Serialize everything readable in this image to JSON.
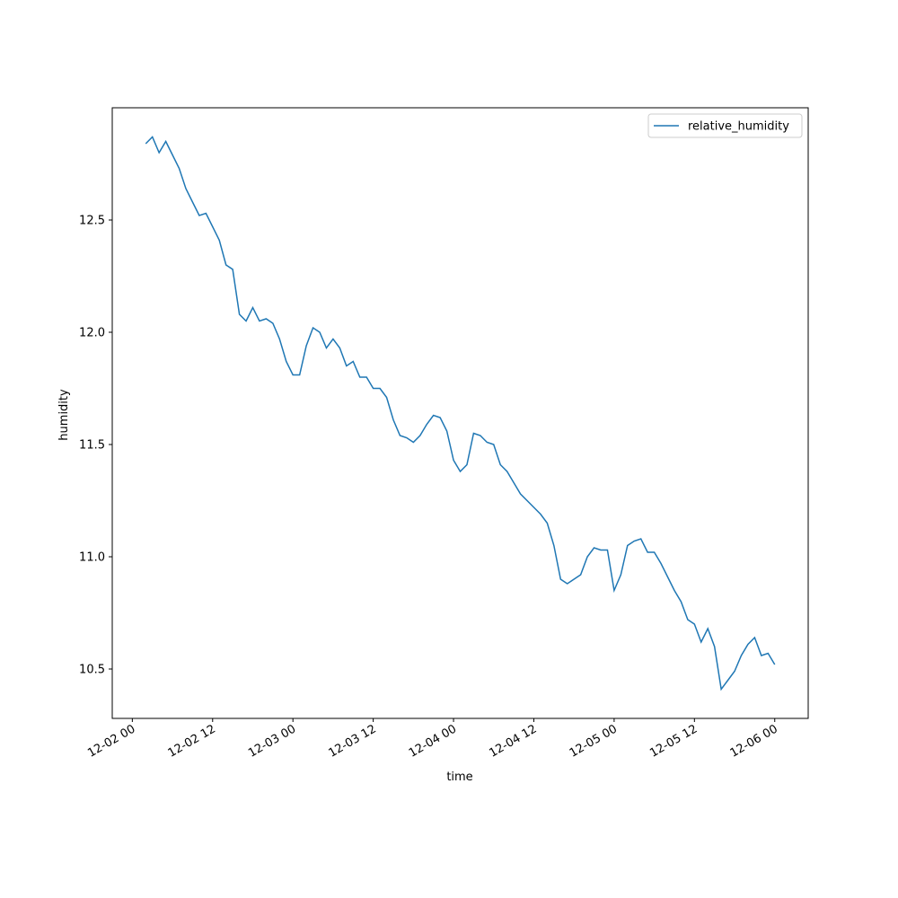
{
  "chart_data": {
    "type": "line",
    "x_label": "time",
    "y_label": "humidity",
    "x": [
      "12-02 02",
      "12-02 03",
      "12-02 04",
      "12-02 05",
      "12-02 06",
      "12-02 07",
      "12-02 08",
      "12-02 09",
      "12-02 10",
      "12-02 11",
      "12-02 12",
      "12-02 13",
      "12-02 14",
      "12-02 15",
      "12-02 16",
      "12-02 17",
      "12-02 18",
      "12-02 19",
      "12-02 20",
      "12-02 21",
      "12-02 22",
      "12-02 23",
      "12-03 00",
      "12-03 01",
      "12-03 02",
      "12-03 03",
      "12-03 04",
      "12-03 05",
      "12-03 06",
      "12-03 07",
      "12-03 08",
      "12-03 09",
      "12-03 10",
      "12-03 11",
      "12-03 12",
      "12-03 13",
      "12-03 14",
      "12-03 15",
      "12-03 16",
      "12-03 17",
      "12-03 18",
      "12-03 19",
      "12-03 20",
      "12-03 21",
      "12-03 22",
      "12-03 23",
      "12-04 00",
      "12-04 01",
      "12-04 02",
      "12-04 03",
      "12-04 04",
      "12-04 05",
      "12-04 06",
      "12-04 07",
      "12-04 08",
      "12-04 09",
      "12-04 10",
      "12-04 11",
      "12-04 12",
      "12-04 13",
      "12-04 14",
      "12-04 15",
      "12-04 16",
      "12-04 17",
      "12-04 18",
      "12-04 19",
      "12-04 20",
      "12-04 21",
      "12-04 22",
      "12-04 23",
      "12-05 00",
      "12-05 01",
      "12-05 02",
      "12-05 03",
      "12-05 04",
      "12-05 05",
      "12-05 06",
      "12-05 07",
      "12-05 08",
      "12-05 09",
      "12-05 10",
      "12-05 11",
      "12-05 12",
      "12-05 13",
      "12-05 14",
      "12-05 15",
      "12-05 16",
      "12-05 17",
      "12-05 18",
      "12-05 19",
      "12-05 20",
      "12-05 21",
      "12-05 22",
      "12-05 23",
      "12-06 00"
    ],
    "series": [
      {
        "name": "relative_humidity",
        "color": "#1f77b4",
        "values": [
          12.84,
          12.87,
          12.8,
          12.85,
          12.79,
          12.73,
          12.64,
          12.58,
          12.52,
          12.53,
          12.47,
          12.41,
          12.3,
          12.28,
          12.08,
          12.05,
          12.11,
          12.05,
          12.06,
          12.04,
          11.97,
          11.87,
          11.81,
          11.81,
          11.94,
          12.02,
          12.0,
          11.93,
          11.97,
          11.93,
          11.85,
          11.87,
          11.8,
          11.8,
          11.75,
          11.75,
          11.71,
          11.61,
          11.54,
          11.53,
          11.51,
          11.54,
          11.59,
          11.63,
          11.62,
          11.56,
          11.43,
          11.38,
          11.41,
          11.55,
          11.54,
          11.51,
          11.5,
          11.41,
          11.38,
          11.33,
          11.28,
          11.25,
          11.22,
          11.19,
          11.15,
          11.05,
          10.9,
          10.88,
          10.9,
          10.92,
          11.0,
          11.04,
          11.03,
          11.03,
          10.85,
          10.92,
          11.05,
          11.07,
          11.08,
          11.02,
          11.02,
          10.97,
          10.91,
          10.85,
          10.8,
          10.72,
          10.7,
          10.62,
          10.68,
          10.6,
          10.41,
          10.45,
          10.49,
          10.56,
          10.61,
          10.64,
          10.56,
          10.57,
          10.52
        ]
      }
    ],
    "xlim": [
      "12-01 21",
      "12-06 05"
    ],
    "xticks": [
      "12-02 00",
      "12-02 12",
      "12-03 00",
      "12-03 12",
      "12-04 00",
      "12-04 12",
      "12-05 00",
      "12-05 12",
      "12-06 00"
    ],
    "ylim": [
      10.28,
      13.0
    ],
    "yticks": [
      10.5,
      {
        "value": 11,
        "label": "11.0"
      },
      11.5,
      {
        "value": 12,
        "label": "12.0"
      },
      12.5
    ],
    "legend": "upper right",
    "grid": false
  }
}
